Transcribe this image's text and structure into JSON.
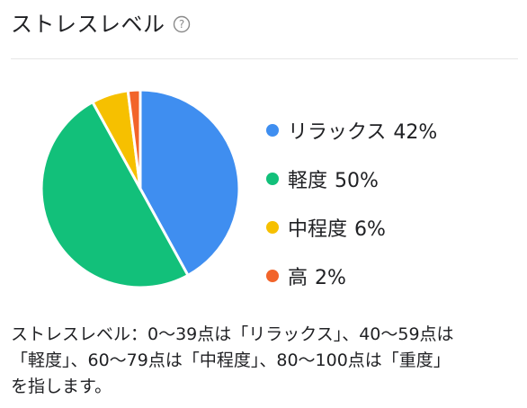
{
  "header": {
    "title": "ストレスレベル",
    "help_icon": "help-circle-icon",
    "help_symbol": "?"
  },
  "chart_data": {
    "type": "pie",
    "categories": [
      "リラックス",
      "軽度",
      "中程度",
      "高"
    ],
    "values": [
      42,
      50,
      6,
      2
    ],
    "value_labels": [
      "42%",
      "50%",
      "6%",
      "2%"
    ],
    "colors": [
      "#3f8ef0",
      "#12c07a",
      "#f6c000",
      "#f2642a"
    ],
    "legend_placement": "right"
  },
  "footnote": {
    "line1": "ストレスレベル：0〜39点は「リラックス」、40〜59点は",
    "line2": "「軽度」、60〜79点は「中程度」、80〜100点は「重度」",
    "line3": "を指します。"
  }
}
